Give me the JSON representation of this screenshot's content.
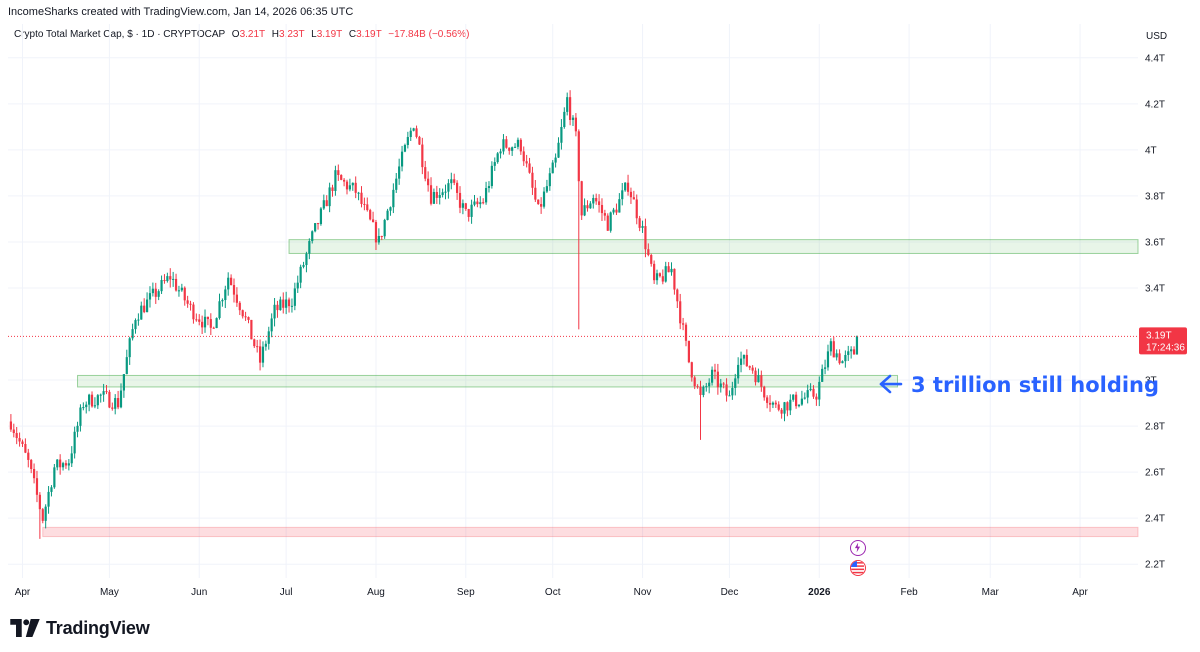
{
  "header": {
    "credit": "IncomeSharks created with TradingView.com, Jan 14, 2026 06:35 UTC"
  },
  "legend": {
    "symbol": "Crypto Total Market Cap, $ · 1D · CRYPTOCAP",
    "open_key": "O",
    "open": "3.21T",
    "high_key": "H",
    "high": "3.23T",
    "low_key": "L",
    "low": "3.19T",
    "close_key": "C",
    "close": "3.19T",
    "change": "−17.84B (−0.56%)"
  },
  "price_scale": {
    "currency": "USD",
    "ticks": [
      "4.4T",
      "4.2T",
      "4T",
      "3.8T",
      "3.6T",
      "3.4T",
      "3T",
      "2.8T",
      "2.6T",
      "2.4T",
      "2.2T"
    ],
    "last_price_label": "3.19T",
    "countdown": "17:24:36"
  },
  "time_scale": {
    "ticks": [
      "Apr",
      "May",
      "Jun",
      "Jul",
      "Aug",
      "Sep",
      "Oct",
      "Nov",
      "Dec",
      "2026",
      "Feb",
      "Mar",
      "Apr"
    ]
  },
  "annotation": {
    "text": "3 trillion still holding"
  },
  "brand": {
    "name": "TradingView"
  },
  "colors": {
    "up": "#089981",
    "down": "#f23645",
    "support_zone": "#4caf50",
    "low_zone": "#f23645",
    "annotation": "#2962ff"
  },
  "events": [
    "lightning-event-icon",
    "us-flag-event-icon"
  ],
  "chart_data": {
    "type": "candlestick",
    "title": "Crypto Total Market Cap, $ · 1D · CRYPTOCAP",
    "xlabel": "",
    "ylabel": "",
    "unit": "USD (trillions)",
    "ylim": [
      2.14,
      4.46
    ],
    "xrange": [
      "2025-03-27",
      "2026-04-21"
    ],
    "last_price": 3.19,
    "zones": [
      {
        "from": "2025-07-02",
        "to": "2026-04-21",
        "low": 3.55,
        "high": 3.61,
        "color": "green"
      },
      {
        "from": "2025-04-20",
        "to": "2026-01-28",
        "low": 2.97,
        "high": 3.02,
        "color": "green"
      },
      {
        "from": "2025-04-08",
        "to": "2026-04-21",
        "low": 2.32,
        "high": 2.36,
        "color": "red"
      }
    ],
    "path_start": "2025-03-28",
    "path_end": "2026-01-14",
    "path_anchors": [
      {
        "t": "2025-03-28",
        "v": 2.82
      },
      {
        "t": "2025-04-03",
        "v": 2.64
      },
      {
        "t": "2025-04-08",
        "v": 2.4
      },
      {
        "t": "2025-04-12",
        "v": 2.62
      },
      {
        "t": "2025-04-17",
        "v": 2.65
      },
      {
        "t": "2025-04-22",
        "v": 2.9
      },
      {
        "t": "2025-04-28",
        "v": 2.93
      },
      {
        "t": "2025-05-04",
        "v": 2.9
      },
      {
        "t": "2025-05-10",
        "v": 3.28
      },
      {
        "t": "2025-05-22",
        "v": 3.45
      },
      {
        "t": "2025-05-29",
        "v": 3.31
      },
      {
        "t": "2025-06-05",
        "v": 3.22
      },
      {
        "t": "2025-06-11",
        "v": 3.45
      },
      {
        "t": "2025-06-16",
        "v": 3.3
      },
      {
        "t": "2025-06-22",
        "v": 3.08
      },
      {
        "t": "2025-06-27",
        "v": 3.3
      },
      {
        "t": "2025-07-03",
        "v": 3.35
      },
      {
        "t": "2025-07-10",
        "v": 3.62
      },
      {
        "t": "2025-07-18",
        "v": 3.88
      },
      {
        "t": "2025-07-25",
        "v": 3.82
      },
      {
        "t": "2025-08-02",
        "v": 3.6
      },
      {
        "t": "2025-08-09",
        "v": 3.92
      },
      {
        "t": "2025-08-14",
        "v": 4.12
      },
      {
        "t": "2025-08-20",
        "v": 3.8
      },
      {
        "t": "2025-08-27",
        "v": 3.85
      },
      {
        "t": "2025-09-01",
        "v": 3.72
      },
      {
        "t": "2025-09-07",
        "v": 3.78
      },
      {
        "t": "2025-09-13",
        "v": 4.02
      },
      {
        "t": "2025-09-20",
        "v": 4.02
      },
      {
        "t": "2025-09-26",
        "v": 3.73
      },
      {
        "t": "2025-10-02",
        "v": 3.95
      },
      {
        "t": "2025-10-06",
        "v": 4.22
      },
      {
        "t": "2025-10-09",
        "v": 4.05
      },
      {
        "t": "2025-10-11",
        "v": 3.72
      },
      {
        "t": "2025-10-15",
        "v": 3.8
      },
      {
        "t": "2025-10-20",
        "v": 3.68
      },
      {
        "t": "2025-10-27",
        "v": 3.85
      },
      {
        "t": "2025-11-01",
        "v": 3.65
      },
      {
        "t": "2025-11-05",
        "v": 3.42
      },
      {
        "t": "2025-11-11",
        "v": 3.48
      },
      {
        "t": "2025-11-17",
        "v": 3.08
      },
      {
        "t": "2025-11-21",
        "v": 2.92
      },
      {
        "t": "2025-11-25",
        "v": 3.02
      },
      {
        "t": "2025-12-01",
        "v": 2.92
      },
      {
        "t": "2025-12-04",
        "v": 3.1
      },
      {
        "t": "2025-12-09",
        "v": 3.05
      },
      {
        "t": "2025-12-13",
        "v": 2.95
      },
      {
        "t": "2025-12-17",
        "v": 2.88
      },
      {
        "t": "2025-12-24",
        "v": 2.91
      },
      {
        "t": "2025-12-31",
        "v": 2.94
      },
      {
        "t": "2026-01-05",
        "v": 3.15
      },
      {
        "t": "2026-01-09",
        "v": 3.08
      },
      {
        "t": "2026-01-13",
        "v": 3.12
      },
      {
        "t": "2026-01-14",
        "v": 3.19
      }
    ]
  }
}
